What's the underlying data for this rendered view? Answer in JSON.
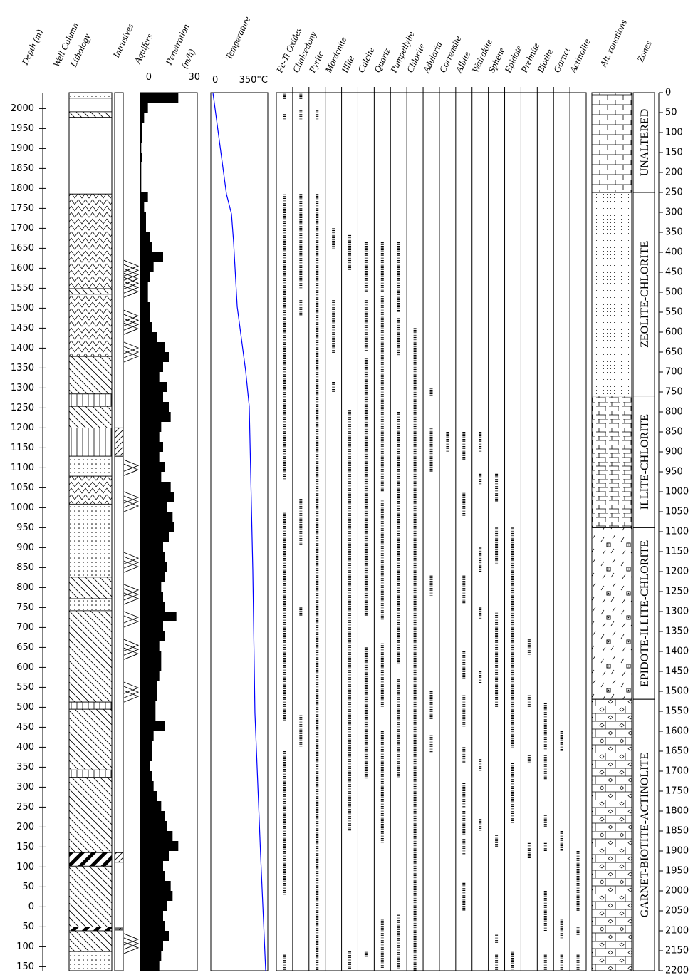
{
  "chart_data": {
    "type": "well-log",
    "headers": {
      "depth": "Depth (m)",
      "well_column": "Well Column",
      "lithology": "Lithology",
      "intrusives": "Intrusives",
      "aquifers": "Aquifers",
      "penetration": [
        "Penetration",
        "(m/h)"
      ],
      "temperature": "Temperature",
      "alt_zonations": "Alt. zonations",
      "zones": "Zones"
    },
    "ylim": [
      2040,
      -160
    ],
    "yticks": [
      2000,
      1950,
      1900,
      1850,
      1800,
      1750,
      1700,
      1650,
      1600,
      1550,
      1500,
      1450,
      1400,
      1350,
      1300,
      1250,
      1200,
      1150,
      1100,
      1050,
      1000,
      950,
      900,
      850,
      800,
      750,
      700,
      650,
      600,
      550,
      500,
      450,
      400,
      350,
      300,
      250,
      200,
      150,
      100,
      50,
      0,
      {
        "value": -50,
        "label": "50"
      },
      {
        "value": -100,
        "label": "100"
      },
      {
        "value": -150,
        "label": "150"
      }
    ],
    "y2lim": [
      0,
      2200
    ],
    "y2ticks": [
      0,
      50,
      100,
      150,
      200,
      250,
      300,
      350,
      400,
      450,
      500,
      550,
      600,
      650,
      700,
      750,
      800,
      850,
      900,
      950,
      1000,
      1050,
      1100,
      1150,
      1200,
      1250,
      1300,
      1350,
      1400,
      1450,
      1500,
      1550,
      1600,
      1650,
      1700,
      1750,
      1800,
      1850,
      1900,
      1950,
      2000,
      2050,
      2100,
      2150,
      2200
    ],
    "lithology": [
      {
        "top": 0,
        "bottom": 14,
        "pattern": "dots"
      },
      {
        "top": 14,
        "bottom": 48,
        "pattern": "blank"
      },
      {
        "top": 48,
        "bottom": 62,
        "pattern": "diag"
      },
      {
        "top": 62,
        "bottom": 254,
        "pattern": "blank"
      },
      {
        "top": 254,
        "bottom": 491,
        "pattern": "v"
      },
      {
        "top": 491,
        "bottom": 505,
        "pattern": "diag"
      },
      {
        "top": 505,
        "bottom": 661,
        "pattern": "v"
      },
      {
        "top": 661,
        "bottom": 755,
        "pattern": "diag"
      },
      {
        "top": 755,
        "bottom": 786,
        "pattern": "vert"
      },
      {
        "top": 786,
        "bottom": 840,
        "pattern": "diag"
      },
      {
        "top": 840,
        "bottom": 911,
        "pattern": "vert"
      },
      {
        "top": 911,
        "bottom": 961,
        "pattern": "dots"
      },
      {
        "top": 961,
        "bottom": 1031,
        "pattern": "v"
      },
      {
        "top": 1031,
        "bottom": 1214,
        "pattern": "dots"
      },
      {
        "top": 1214,
        "bottom": 1268,
        "pattern": "diag"
      },
      {
        "top": 1268,
        "bottom": 1298,
        "pattern": "dots"
      },
      {
        "top": 1298,
        "bottom": 1527,
        "pattern": "diag"
      },
      {
        "top": 1527,
        "bottom": 1545,
        "pattern": "vert"
      },
      {
        "top": 1545,
        "bottom": 1697,
        "pattern": "diag"
      },
      {
        "top": 1697,
        "bottom": 1715,
        "pattern": "vert"
      },
      {
        "top": 1715,
        "bottom": 1904,
        "pattern": "diag"
      },
      {
        "top": 1904,
        "bottom": 1938,
        "pattern": "black"
      },
      {
        "top": 1938,
        "bottom": 2090,
        "pattern": "diag"
      },
      {
        "top": 2090,
        "bottom": 2100,
        "pattern": "black"
      },
      {
        "top": 2100,
        "bottom": 2152,
        "pattern": "diag"
      },
      {
        "top": 2152,
        "bottom": 2200,
        "pattern": "dots"
      }
    ],
    "intrusives": [
      [
        840,
        911
      ],
      [
        1904,
        1928
      ],
      [
        2093,
        2098
      ]
    ],
    "aquifers": [
      [
        420,
        518
      ],
      [
        545,
        607
      ],
      [
        625,
        679
      ],
      [
        920,
        968
      ],
      [
        1000,
        1054
      ],
      [
        1152,
        1206
      ],
      [
        1232,
        1286
      ],
      [
        1300,
        1348
      ],
      [
        1370,
        1425
      ],
      [
        1477,
        1527
      ],
      [
        2107,
        2165
      ]
    ],
    "penetration": {
      "xlim": [
        0,
        30
      ],
      "xticks": [
        0,
        30
      ],
      "color": "#000000",
      "bins": [
        0,
        25,
        50,
        75,
        100,
        125,
        150,
        175,
        200,
        225,
        250,
        275,
        300,
        325,
        350,
        375,
        400,
        425,
        450,
        475,
        500,
        525,
        550,
        575,
        600,
        625,
        650,
        675,
        700,
        725,
        750,
        775,
        800,
        825,
        850,
        875,
        900,
        925,
        950,
        975,
        1000,
        1025,
        1050,
        1075,
        1100,
        1125,
        1150,
        1175,
        1200,
        1225,
        1250,
        1275,
        1300,
        1325,
        1350,
        1375,
        1400,
        1425,
        1450,
        1475,
        1500,
        1525,
        1550,
        1575,
        1600,
        1625,
        1650,
        1675,
        1700,
        1725,
        1750,
        1775,
        1800,
        1825,
        1850,
        1875,
        1900,
        1925,
        1950,
        1975,
        2000,
        2025,
        2050,
        2075,
        2100,
        2125,
        2150,
        2175,
        2200
      ],
      "values": [
        20,
        4,
        2,
        1,
        1,
        0.5,
        1,
        0.5,
        0.5,
        0.5,
        4,
        2,
        3,
        3,
        5,
        6,
        12,
        7,
        5,
        4,
        4,
        5,
        5,
        6,
        9,
        13,
        15,
        12,
        10,
        14,
        12,
        15,
        16,
        11,
        10,
        12,
        10,
        13,
        11,
        16,
        18,
        14,
        17,
        18,
        15,
        12,
        13,
        14,
        13,
        11,
        12,
        13,
        19,
        12,
        13,
        10,
        11,
        11,
        10,
        9,
        9,
        8,
        8,
        13,
        7,
        6,
        6,
        5,
        6,
        7,
        9,
        11,
        13,
        14,
        17,
        20,
        15,
        12,
        13,
        16,
        17,
        14,
        12,
        13,
        15,
        12,
        11,
        10
      ]
    },
    "temperature": {
      "xlim": [
        0,
        350
      ],
      "xticks": [
        0,
        {
          "value": 350,
          "label": "350°C"
        }
      ],
      "color": "#0000ff",
      "depth": [
        0,
        254,
        304,
        375,
        536,
        697,
        786,
        1197,
        1554,
        1911,
        2200
      ],
      "values": [
        13,
        96,
        127,
        140,
        162,
        214,
        236,
        258,
        271,
        306,
        337
      ]
    },
    "minerals": [
      {
        "name": "Fe-Ti Oxides",
        "ranges": [
          [
            0,
            18
          ],
          [
            54,
            71
          ],
          [
            255,
            970
          ],
          [
            1050,
            1575
          ],
          [
            1650,
            2010
          ],
          [
            2160,
            2200
          ]
        ]
      },
      {
        "name": "Chalcedony",
        "ranges": [
          [
            0,
            18
          ],
          [
            45,
            68
          ],
          [
            254,
            491
          ],
          [
            520,
            560
          ],
          [
            1018,
            1134
          ],
          [
            1290,
            1310
          ],
          [
            1560,
            1640
          ]
        ]
      },
      {
        "name": "Pyrite",
        "ranges": [
          [
            45,
            70
          ],
          [
            254,
            2200
          ]
        ]
      },
      {
        "name": "Mordenite",
        "ranges": [
          [
            340,
            390
          ],
          [
            520,
            655
          ],
          [
            725,
            750
          ]
        ]
      },
      {
        "name": "Illite",
        "ranges": [
          [
            357,
            446
          ],
          [
            795,
            1849
          ],
          [
            2152,
            2196
          ]
        ]
      },
      {
        "name": "Calcite",
        "ranges": [
          [
            375,
            500
          ],
          [
            520,
            648
          ],
          [
            665,
            1310
          ],
          [
            1390,
            1720
          ],
          [
            2150,
            2165
          ]
        ]
      },
      {
        "name": "Quartz",
        "ranges": [
          [
            375,
            500
          ],
          [
            510,
            1000
          ],
          [
            1020,
            1320
          ],
          [
            1380,
            1540
          ],
          [
            1600,
            1880
          ],
          [
            2070,
            2195
          ]
        ]
      },
      {
        "name": "Pumpellyite",
        "ranges": [
          [
            375,
            550
          ],
          [
            565,
            660
          ],
          [
            800,
            1430
          ],
          [
            1470,
            1720
          ],
          [
            2060,
            2195
          ]
        ]
      },
      {
        "name": "Chlorite",
        "ranges": [
          [
            590,
            2200
          ]
        ]
      },
      {
        "name": "Adularia",
        "ranges": [
          [
            740,
            760
          ],
          [
            840,
            950
          ],
          [
            1210,
            1260
          ],
          [
            1500,
            1570
          ],
          [
            1610,
            1655
          ]
        ]
      },
      {
        "name": "Corrensite",
        "ranges": [
          [
            850,
            900
          ]
        ]
      },
      {
        "name": "Albite",
        "ranges": [
          [
            850,
            920
          ],
          [
            1000,
            1060
          ],
          [
            1210,
            1280
          ],
          [
            1400,
            1470
          ],
          [
            1510,
            1590
          ],
          [
            1640,
            1680
          ],
          [
            1730,
            1790
          ],
          [
            1800,
            1860
          ],
          [
            1870,
            1910
          ],
          [
            1980,
            2050
          ]
        ]
      },
      {
        "name": "Wairakite",
        "ranges": [
          [
            850,
            900
          ],
          [
            955,
            985
          ],
          [
            1140,
            1200
          ],
          [
            1290,
            1320
          ],
          [
            1450,
            1480
          ],
          [
            1670,
            1700
          ],
          [
            1820,
            1850
          ]
        ]
      },
      {
        "name": "Sphene",
        "ranges": [
          [
            955,
            1025
          ],
          [
            1090,
            1180
          ],
          [
            1300,
            1540
          ],
          [
            1860,
            1890
          ],
          [
            2110,
            2130
          ],
          [
            2160,
            2200
          ]
        ]
      },
      {
        "name": "Epidote",
        "ranges": [
          [
            1090,
            1640
          ],
          [
            1680,
            1830
          ],
          [
            2150,
            2200
          ]
        ]
      },
      {
        "name": "Prehnite",
        "ranges": [
          [
            1370,
            1410
          ],
          [
            1510,
            1540
          ],
          [
            1660,
            1680
          ],
          [
            1880,
            1920
          ]
        ]
      },
      {
        "name": "Biotite",
        "ranges": [
          [
            1530,
            1650
          ],
          [
            1660,
            1720
          ],
          [
            1810,
            1840
          ],
          [
            1880,
            1900
          ],
          [
            2000,
            2100
          ],
          [
            2160,
            2200
          ]
        ]
      },
      {
        "name": "Garnet",
        "ranges": [
          [
            1600,
            1650
          ],
          [
            1850,
            1900
          ],
          [
            2070,
            2120
          ],
          [
            2160,
            2200
          ]
        ]
      },
      {
        "name": "Actinolite",
        "ranges": [
          [
            1900,
            2050
          ],
          [
            2090,
            2110
          ],
          [
            2160,
            2200
          ]
        ]
      }
    ],
    "zones": [
      {
        "name": "UNALTERED",
        "top": 0,
        "bottom": 250,
        "pattern": "brick"
      },
      {
        "name": "ZEOLITE-CHLORITE",
        "top": 250,
        "bottom": 760,
        "pattern": "fine-dots"
      },
      {
        "name": "ILLITE-CHLORITE",
        "top": 760,
        "bottom": 1090,
        "pattern": "dash-brick"
      },
      {
        "name": "EPIDOTE-ILLITE-CHLORITE",
        "top": 1090,
        "bottom": 1520,
        "pattern": "epidote"
      },
      {
        "name": "GARNET-BIOTITE-ACTINOLITE",
        "top": 1520,
        "bottom": 2200,
        "pattern": "diamond"
      }
    ]
  }
}
